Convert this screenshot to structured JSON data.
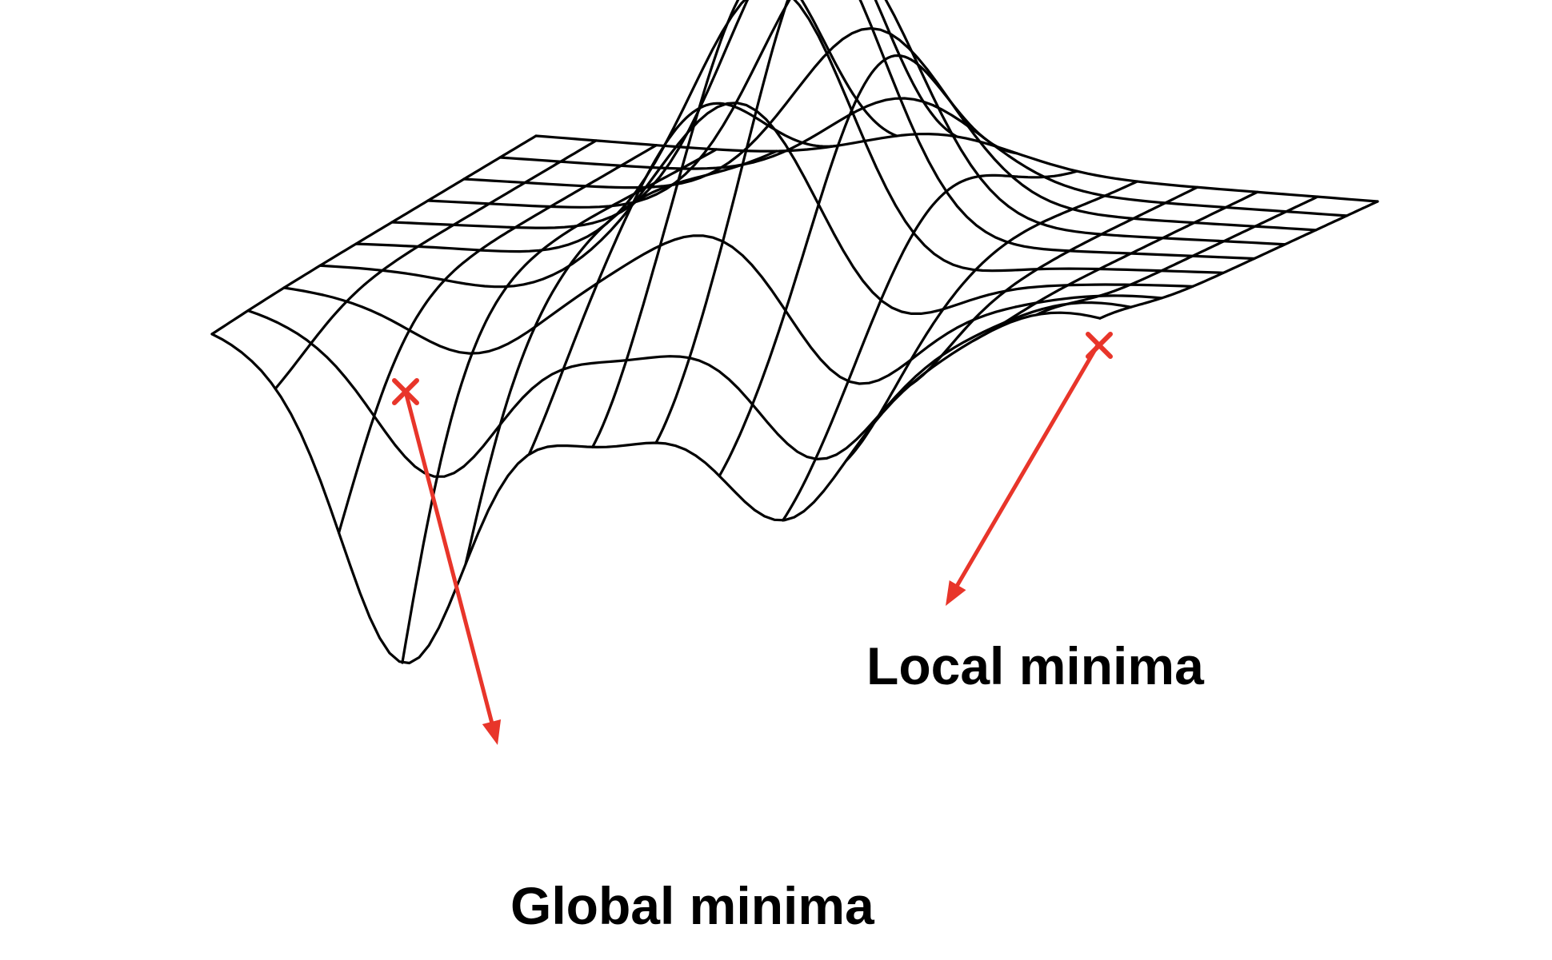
{
  "labels": {
    "local_minima": "Local minima",
    "global_minima": "Global minima"
  },
  "colors": {
    "mesh": "#000000",
    "arrow": "#e8352a",
    "background": "#ffffff"
  },
  "markers": [
    {
      "name": "start-marker-global",
      "symbol": "x"
    },
    {
      "name": "start-marker-local",
      "symbol": "x"
    }
  ]
}
